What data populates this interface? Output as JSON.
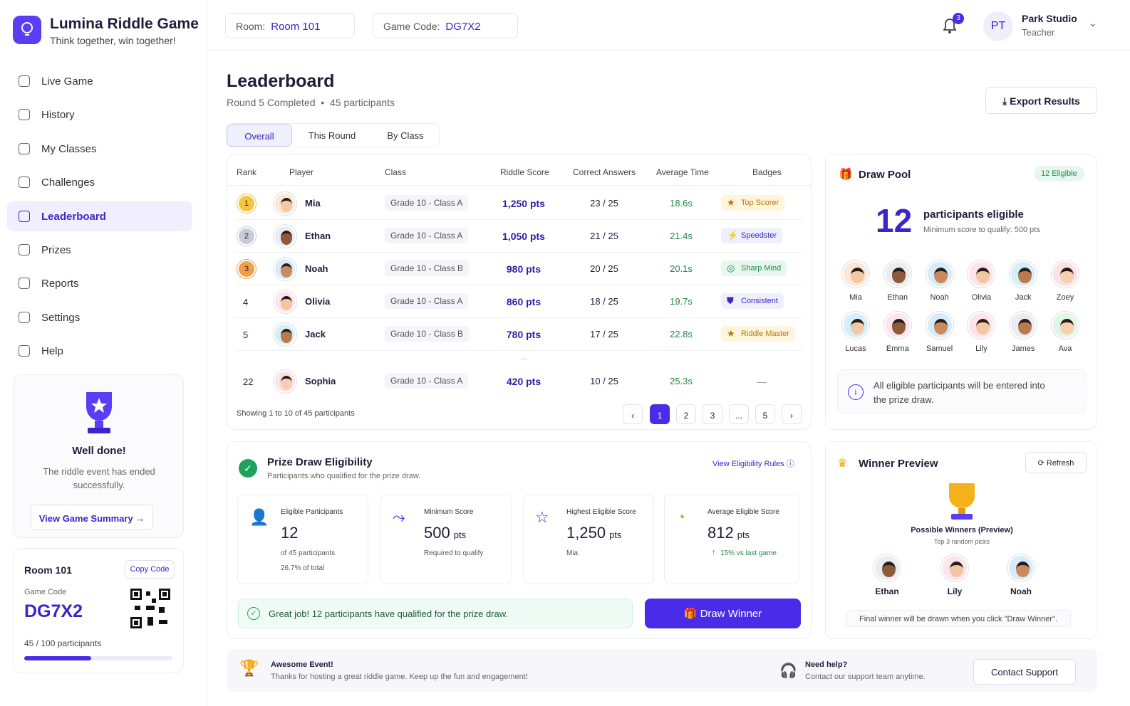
{
  "brand": {
    "name": "Lumina Riddle Game",
    "tagline": "Think together, win together!"
  },
  "nav": [
    "Live Game",
    "History",
    "My Classes",
    "Challenges",
    "Leaderboard",
    "Prizes",
    "Reports",
    "Settings",
    "Help"
  ],
  "sidebar_card": {
    "title": "Well done!",
    "text": "The riddle event has ended successfully.",
    "button": "View Game Summary"
  },
  "room_card": {
    "title": "Room 101",
    "copy": "Copy Code",
    "code_label": "Game Code",
    "code": "DG7X2",
    "participants": "45 / 100 participants"
  },
  "header": {
    "room_label": "Room:",
    "room": "Room 101",
    "code_label": "Game Code:",
    "code": "DG7X2",
    "notifications": "3",
    "initials": "PT",
    "user": "Park Studio",
    "role": "Teacher"
  },
  "page": {
    "title": "Leaderboard",
    "subtitle": "Round 5 Completed",
    "participants": "45 participants",
    "export": "Export Results",
    "tabs": [
      "Overall",
      "This Round",
      "By Class"
    ]
  },
  "table": {
    "columns": [
      "Rank",
      "Player",
      "Class",
      "Riddle Score",
      "Correct Answers",
      "Average Time",
      "Badges"
    ],
    "rows": [
      [
        "1",
        "Mia",
        "Grade 10 - Class A",
        "1,250 pts",
        "23 / 25",
        "18.6s",
        "Top Scorer"
      ],
      [
        "2",
        "Ethan",
        "Grade 10 - Class A",
        "1,050 pts",
        "21 / 25",
        "21.4s",
        "Speedster"
      ],
      [
        "3",
        "Noah",
        "Grade 10 - Class B",
        "980 pts",
        "20 / 25",
        "20.1s",
        "Sharp Mind"
      ],
      [
        "4",
        "Olivia",
        "Grade 10 - Class A",
        "860 pts",
        "18 / 25",
        "19.7s",
        "Consistent"
      ],
      [
        "5",
        "Jack",
        "Grade 10 - Class B",
        "780 pts",
        "17 / 25",
        "22.8s",
        "Riddle Master"
      ],
      [
        "22",
        "Sophia",
        "Grade 10 - Class A",
        "420 pts",
        "10 / 25",
        "25.3s",
        "—"
      ]
    ],
    "ellipsis": "...",
    "showing": "Showing 1 to 10 of 45 participants",
    "pages": [
      "1",
      "2",
      "3",
      "...",
      "5"
    ]
  },
  "draw_pool": {
    "title": "Draw Pool",
    "badge": "12 Eligible",
    "count": "12",
    "count_label": "participants eligible",
    "min": "Minimum score to qualify: 500 pts",
    "names": [
      "Mia",
      "Ethan",
      "Noah",
      "Olivia",
      "Jack",
      "Zoey",
      "Lucas",
      "Emma",
      "Samuel",
      "Lily",
      "James",
      "Ava"
    ],
    "note": "All eligible participants will be entered into the prize draw."
  },
  "eligibility": {
    "title": "Prize Draw Eligibility",
    "subtitle": "Participants who qualified for the prize draw.",
    "link": "View Eligibility Rules",
    "stats": [
      {
        "label": "Eligible Participants",
        "value": "12",
        "lines": [
          "of 45 participants",
          "26.7% of total"
        ]
      },
      {
        "label": "Minimum Score",
        "value": "500",
        "unit": "pts",
        "lines": [
          "Required to qualify"
        ]
      },
      {
        "label": "Highest Eligible Score",
        "value": "1,250",
        "unit": "pts",
        "lines": [
          "Mia"
        ]
      },
      {
        "label": "Average Eligible Score",
        "value": "812",
        "unit": "pts",
        "lines": [
          "15% vs last game"
        ]
      }
    ],
    "banner": "Great job! 12 participants have qualified for the prize draw.",
    "button": "Draw Winner"
  },
  "winner": {
    "title": "Winner Preview",
    "refresh": "Refresh",
    "subtitle": "Possible Winners (Preview)",
    "note": "Top 3 random picks",
    "names": [
      "Ethan",
      "Lily",
      "Noah"
    ],
    "footer": "Final winner will be drawn when you click \"Draw Winner\"."
  },
  "footer": {
    "title": "Awesome Event!",
    "text": "Thanks for hosting a great riddle game. Keep up the fun and engagement!",
    "help_title": "Need help?",
    "help_text": "Contact our support team anytime.",
    "button": "Contact Support"
  }
}
